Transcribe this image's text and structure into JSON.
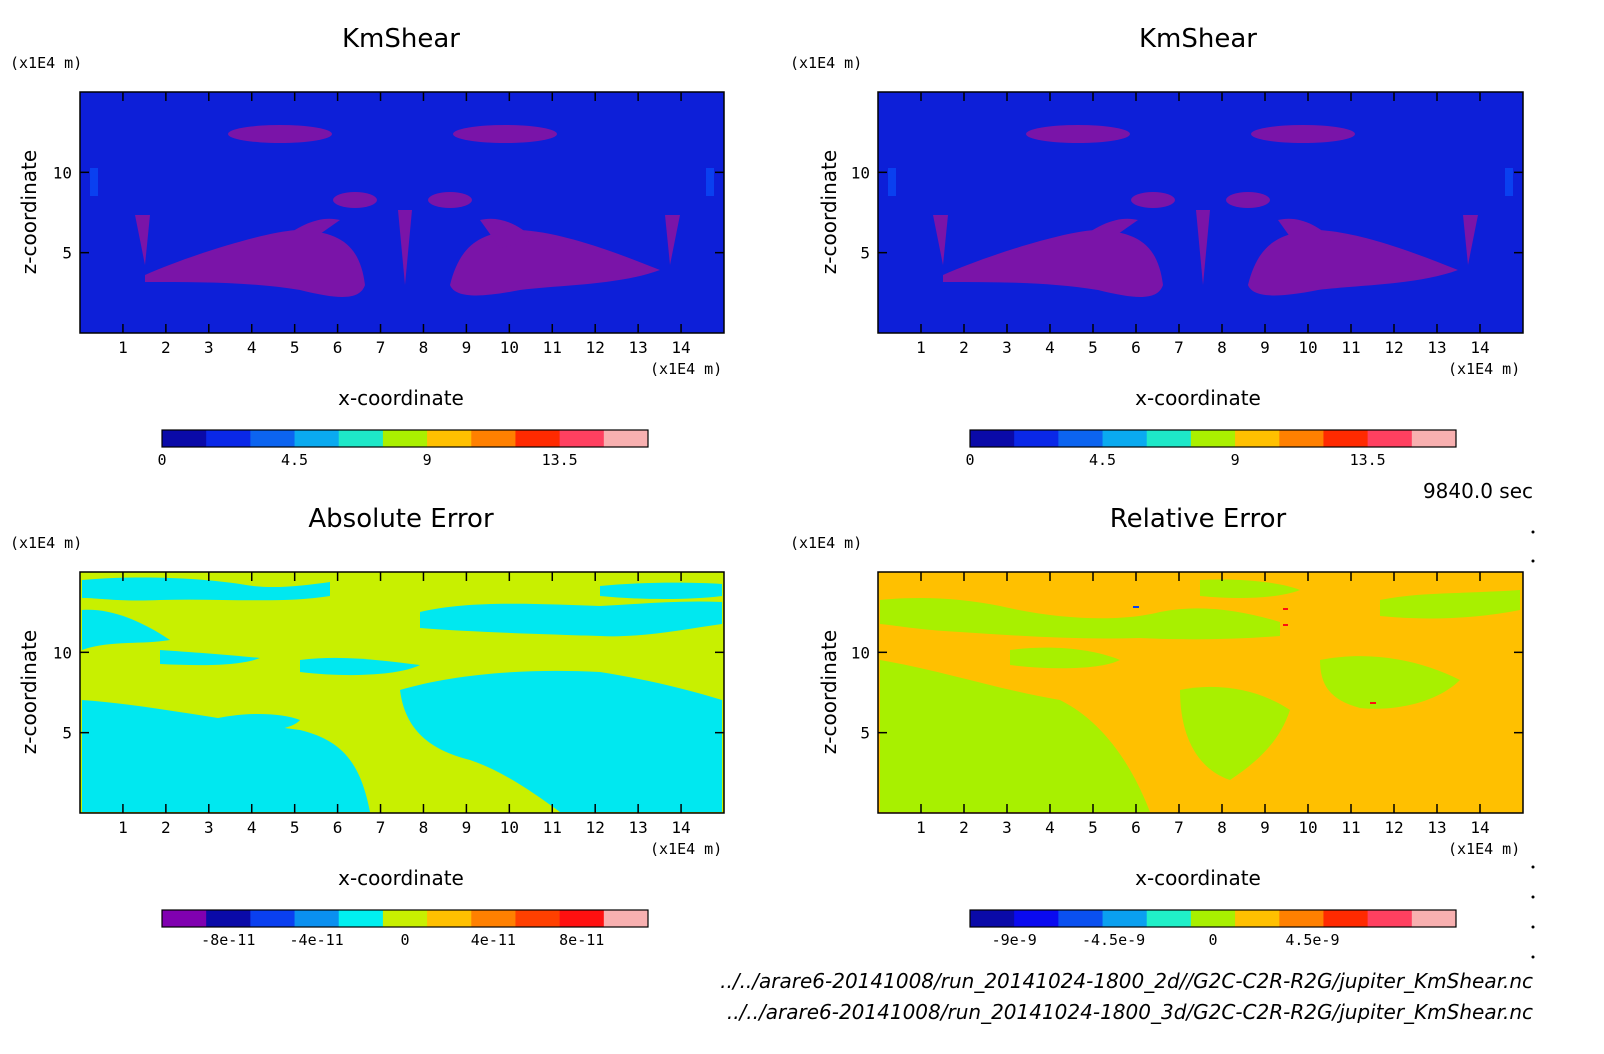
{
  "time_label": "9840.0 sec",
  "file_paths": [
    "../../arare6-20141008/run_20141024-1800_2d//G2C-C2R-R2G/jupiter_KmShear.nc",
    "../../arare6-20141008/run_20141024-1800_3d/G2C-C2R-R2G/jupiter_KmShear.nc"
  ],
  "chart_data": [
    {
      "type": "heatmap",
      "title": "KmShear",
      "xlabel": "x-coordinate",
      "ylabel": "z-coordinate",
      "x_unit": "(x1E4 m)",
      "y_unit": "(x1E4 m)",
      "x_ticks": [
        1,
        2,
        3,
        4,
        5,
        6,
        7,
        8,
        9,
        10,
        11,
        12,
        13,
        14
      ],
      "y_ticks": [
        5,
        10
      ],
      "xlim": [
        0,
        15
      ],
      "ylim": [
        0,
        15
      ],
      "background": "#0d1fd8",
      "colorbar": {
        "colors": [
          "#0a0aa8",
          "#0a28e8",
          "#0c64f0",
          "#0aaaf0",
          "#1ee8c8",
          "#aaf000",
          "#ffc000",
          "#ff8000",
          "#ff2a00",
          "#ff4060",
          "#f8b0b0"
        ],
        "tick_labels": [
          "0",
          "4.5",
          "9",
          "13.5"
        ],
        "tick_values": [
          0,
          4.5,
          9,
          13.5
        ],
        "min": 0,
        "max": 16.5
      }
    },
    {
      "type": "heatmap",
      "title": "KmShear",
      "xlabel": "x-coordinate",
      "ylabel": "z-coordinate",
      "x_unit": "(x1E4 m)",
      "y_unit": "(x1E4 m)",
      "x_ticks": [
        1,
        2,
        3,
        4,
        5,
        6,
        7,
        8,
        9,
        10,
        11,
        12,
        13,
        14
      ],
      "y_ticks": [
        5,
        10
      ],
      "xlim": [
        0,
        15
      ],
      "ylim": [
        0,
        15
      ],
      "background": "#0d1fd8",
      "colorbar": {
        "colors": [
          "#0a0aa8",
          "#0a28e8",
          "#0c64f0",
          "#0aaaf0",
          "#1ee8c8",
          "#aaf000",
          "#ffc000",
          "#ff8000",
          "#ff2a00",
          "#ff4060",
          "#f8b0b0"
        ],
        "tick_labels": [
          "0",
          "4.5",
          "9",
          "13.5"
        ],
        "tick_values": [
          0,
          4.5,
          9,
          13.5
        ],
        "min": 0,
        "max": 16.5
      }
    },
    {
      "type": "heatmap",
      "title": "Absolute Error",
      "xlabel": "x-coordinate",
      "ylabel": "z-coordinate",
      "x_unit": "(x1E4 m)",
      "y_unit": "(x1E4 m)",
      "x_ticks": [
        1,
        2,
        3,
        4,
        5,
        6,
        7,
        8,
        9,
        10,
        11,
        12,
        13,
        14
      ],
      "y_ticks": [
        5,
        10
      ],
      "xlim": [
        0,
        15
      ],
      "ylim": [
        0,
        15
      ],
      "background": "#c8f000",
      "colorbar": {
        "colors": [
          "#8000b0",
          "#0a0aa8",
          "#0a40f0",
          "#0a90f0",
          "#00f0f0",
          "#c8f000",
          "#ffc000",
          "#ff8000",
          "#ff4000",
          "#ff1010",
          "#f8b0b0"
        ],
        "tick_labels": [
          "-8e-11",
          "-4e-11",
          "0",
          "4e-11",
          "8e-11"
        ],
        "tick_values": [
          -8e-11,
          -4e-11,
          0,
          4e-11,
          8e-11
        ],
        "min": -1.1e-10,
        "max": 1.1e-10
      }
    },
    {
      "type": "heatmap",
      "title": "Relative Error",
      "xlabel": "x-coordinate",
      "ylabel": "z-coordinate",
      "x_unit": "(x1E4 m)",
      "y_unit": "(x1E4 m)",
      "x_ticks": [
        1,
        2,
        3,
        4,
        5,
        6,
        7,
        8,
        9,
        10,
        11,
        12,
        13,
        14
      ],
      "y_ticks": [
        5,
        10
      ],
      "xlim": [
        0,
        15
      ],
      "ylim": [
        0,
        15
      ],
      "background": "#ffc000",
      "colorbar": {
        "colors": [
          "#0a0aa8",
          "#0a0af0",
          "#0a50f0",
          "#0aa0f0",
          "#20f0c8",
          "#a8f000",
          "#ffc000",
          "#ff8000",
          "#ff2a00",
          "#ff4060",
          "#f8b0b0"
        ],
        "tick_labels": [
          "-9e-9",
          "-4.5e-9",
          "0",
          "4.5e-9"
        ],
        "tick_values": [
          -9e-09,
          -4.5e-09,
          0,
          4.5e-09
        ],
        "min": -1.1e-08,
        "max": 1.1e-08
      }
    }
  ]
}
